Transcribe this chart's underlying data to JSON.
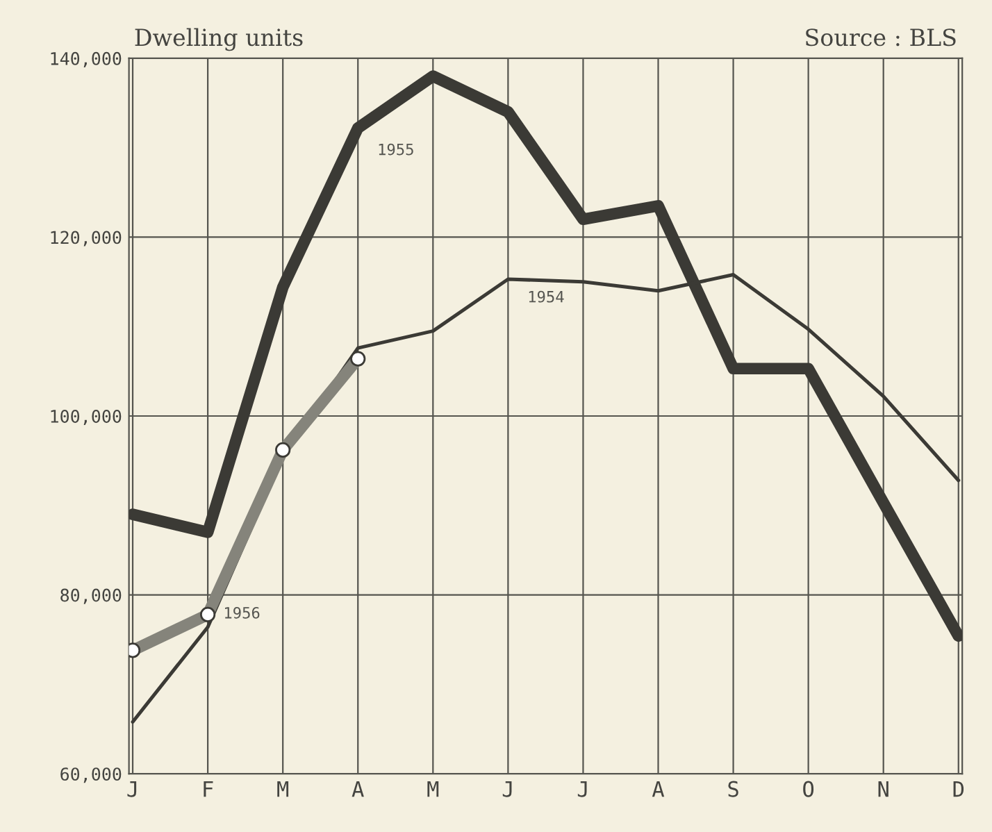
{
  "chart_data": {
    "type": "line",
    "ylabel": "Dwelling units",
    "annotations": [
      "Source : BLS"
    ],
    "categories": [
      "J",
      "F",
      "M",
      "A",
      "M",
      "J",
      "J",
      "A",
      "S",
      "O",
      "N",
      "D"
    ],
    "series": [
      {
        "name": "1955",
        "color": "#3b3a35",
        "values": [
          89000,
          87000,
          114400,
          132200,
          138000,
          134000,
          122000,
          123500,
          105300,
          105300,
          90300,
          75400
        ]
      },
      {
        "name": "1954",
        "color": "#3b3a35",
        "values": [
          65800,
          76400,
          95500,
          107600,
          109500,
          115300,
          115000,
          114000,
          115800,
          109700,
          102200,
          92800
        ]
      },
      {
        "name": "1956",
        "color": "#85847b",
        "marker": "circle",
        "values": [
          73800,
          77800,
          96200,
          106400,
          null,
          null,
          null,
          null,
          null,
          null,
          null,
          null
        ]
      }
    ],
    "ylim": [
      60000,
      140000
    ],
    "yticks": [
      {
        "value": 60000,
        "label": "60,000"
      },
      {
        "value": 80000,
        "label": "80,000"
      },
      {
        "value": 100000,
        "label": "100,000"
      },
      {
        "value": 120000,
        "label": "120,000"
      },
      {
        "value": 140000,
        "label": "140,000"
      }
    ],
    "grid": true
  }
}
